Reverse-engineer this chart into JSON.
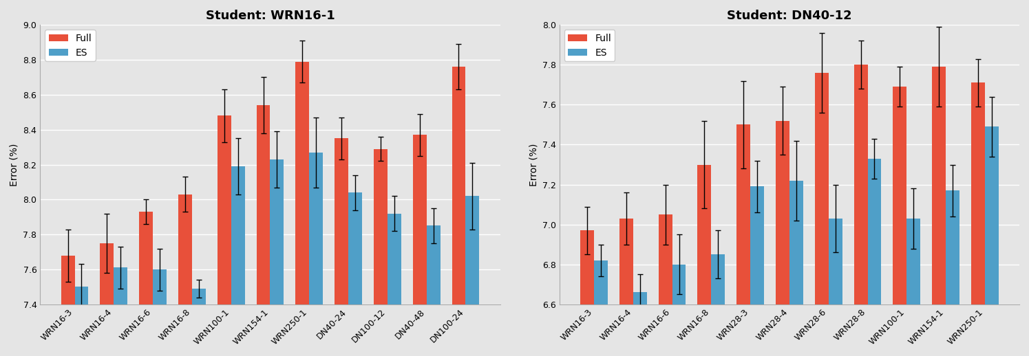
{
  "chart1": {
    "title": "Student: WRN16-1",
    "categories": [
      "WRN16-3",
      "WRN16-4",
      "WRN16-6",
      "WRN16-8",
      "WRN100-1",
      "WRN154-1",
      "WRN250-1",
      "DN40-24",
      "DN100-12",
      "DN40-48",
      "DN100-24"
    ],
    "full_values": [
      7.68,
      7.75,
      7.93,
      8.03,
      8.48,
      8.54,
      8.79,
      8.35,
      8.29,
      8.37,
      8.76
    ],
    "es_values": [
      7.5,
      7.61,
      7.6,
      7.49,
      8.19,
      8.23,
      8.27,
      8.04,
      7.92,
      7.85,
      8.02
    ],
    "full_err": [
      0.15,
      0.17,
      0.07,
      0.1,
      0.15,
      0.16,
      0.12,
      0.12,
      0.07,
      0.12,
      0.13
    ],
    "es_err": [
      0.13,
      0.12,
      0.12,
      0.05,
      0.16,
      0.16,
      0.2,
      0.1,
      0.1,
      0.1,
      0.19
    ],
    "ylabel": "Error (%)",
    "ylim": [
      7.4,
      9.0
    ],
    "yticks": [
      7.4,
      7.6,
      7.8,
      8.0,
      8.2,
      8.4,
      8.6,
      8.8,
      9.0
    ]
  },
  "chart2": {
    "title": "Student: DN40-12",
    "categories": [
      "WRN16-3",
      "WRN16-4",
      "WRN16-6",
      "WRN16-8",
      "WRN28-3",
      "WRN28-4",
      "WRN28-6",
      "WRN28-8",
      "WRN100-1",
      "WRN154-1",
      "WRN250-1"
    ],
    "full_values": [
      6.97,
      7.03,
      7.05,
      7.3,
      7.5,
      7.52,
      7.76,
      7.8,
      7.69,
      7.79,
      7.71
    ],
    "es_values": [
      6.82,
      6.66,
      6.8,
      6.85,
      7.19,
      7.22,
      7.03,
      7.33,
      7.03,
      7.17,
      7.49
    ],
    "full_err": [
      0.12,
      0.13,
      0.15,
      0.22,
      0.22,
      0.17,
      0.2,
      0.12,
      0.1,
      0.2,
      0.12
    ],
    "es_err": [
      0.08,
      0.09,
      0.15,
      0.12,
      0.13,
      0.2,
      0.17,
      0.1,
      0.15,
      0.13,
      0.15
    ],
    "ylabel": "Error (%)",
    "ylim": [
      6.6,
      8.0
    ],
    "yticks": [
      6.6,
      6.8,
      7.0,
      7.2,
      7.4,
      7.6,
      7.8,
      8.0
    ]
  },
  "full_color": "#E8503A",
  "es_color": "#4F9FC8",
  "background_color": "#E5E5E5",
  "bar_width": 0.35,
  "legend_labels": [
    "Full",
    "ES"
  ],
  "title_fontsize": 13,
  "label_fontsize": 10,
  "tick_fontsize": 9,
  "capsize": 3
}
